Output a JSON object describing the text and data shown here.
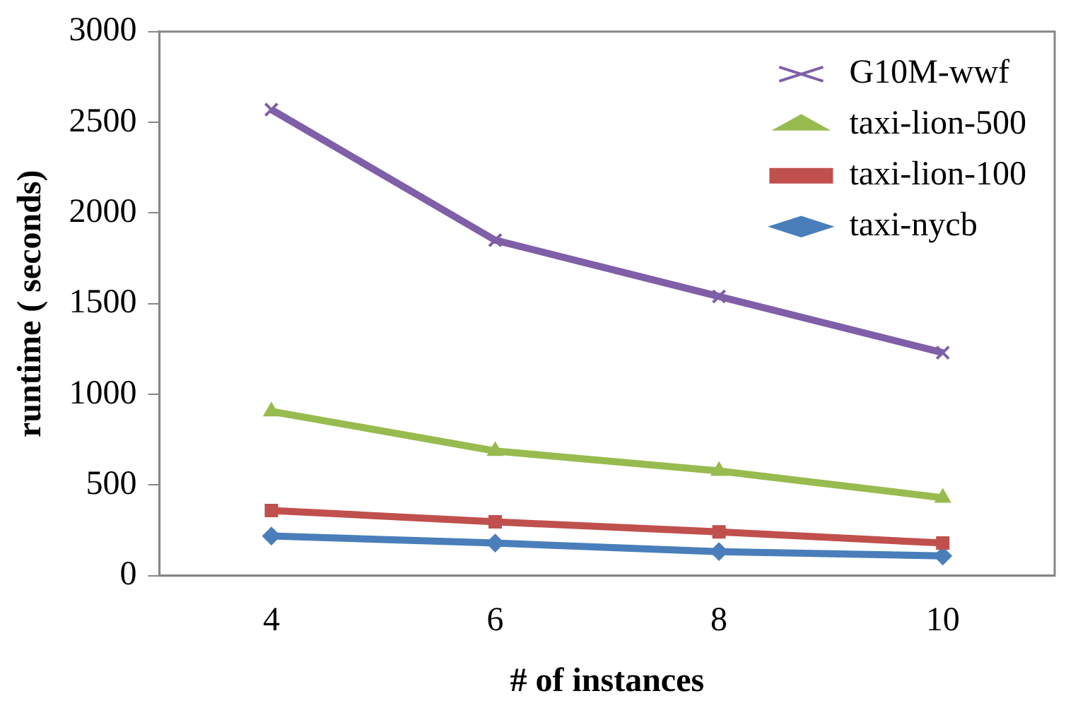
{
  "chart_data": {
    "type": "line",
    "xlabel": "# of instances",
    "ylabel": "runtime ( seconds)",
    "categories": [
      "4",
      "6",
      "8",
      "10"
    ],
    "series": [
      {
        "name": "G10M-wwf",
        "color": "#7f5fa8",
        "marker": "cross",
        "values": [
          2570,
          1850,
          1540,
          1230
        ]
      },
      {
        "name": "taxi-lion-500",
        "color": "#98bb4f",
        "marker": "triangle",
        "values": [
          906,
          688,
          578,
          430
        ]
      },
      {
        "name": "taxi-lion-100",
        "color": "#c0504d",
        "marker": "square",
        "values": [
          360,
          297,
          242,
          180
        ]
      },
      {
        "name": "taxi-nycb",
        "color": "#4a7ebb",
        "marker": "diamond",
        "values": [
          219,
          180,
          133,
          109
        ]
      }
    ],
    "ylim": [
      0,
      3000
    ],
    "yticks": [
      0,
      500,
      1000,
      1500,
      2000,
      2500,
      3000
    ],
    "grid": false,
    "legend": "top right"
  }
}
